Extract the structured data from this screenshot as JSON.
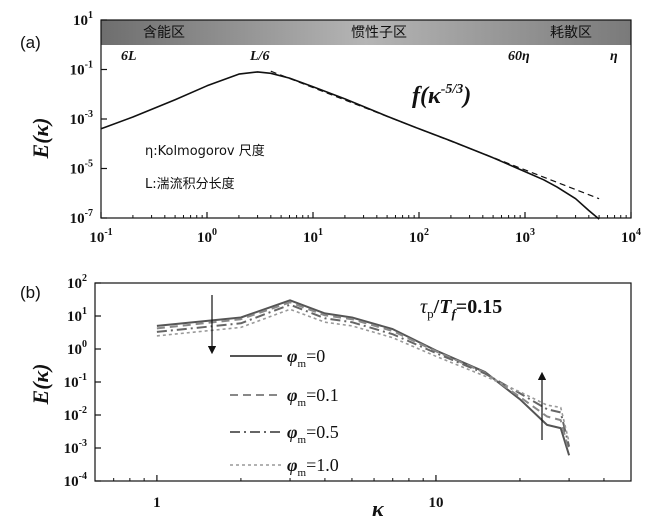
{
  "chart_data": [
    {
      "id": "a",
      "type": "line",
      "panel_label": "(a)",
      "xscale": "log",
      "yscale": "log",
      "xlim": [
        0.1,
        10000
      ],
      "ylim": [
        1e-07,
        10
      ],
      "x_ticks": [
        "10",
        "10",
        "10",
        "10",
        "10",
        "10"
      ],
      "x_tick_exps": [
        "-1",
        "0",
        "1",
        "2",
        "3",
        "4"
      ],
      "y_ticks": [
        "10",
        "10",
        "10",
        "10",
        "10"
      ],
      "y_tick_exps": [
        "-7",
        "-5",
        "-3",
        "-1",
        "1"
      ],
      "ylabel": "E(κ)",
      "ylabel_main": "E(",
      "ylabel_var": "κ",
      "ylabel_close": ")",
      "bands": [
        "含能区",
        "惯性子区",
        "耗散区"
      ],
      "scale_marks": [
        "6L",
        "L/6",
        "60η",
        "η"
      ],
      "annotations": [
        "η:Kolmogorov 尺度",
        "L:湍流积分长度"
      ],
      "slope_label": "f(κ",
      "slope_exp": "-5/3",
      "slope_close": ")",
      "series": [
        {
          "name": "E(κ)",
          "style": "solid",
          "x": [
            0.1,
            0.2,
            0.5,
            1,
            2,
            3,
            4,
            6,
            10,
            20,
            50,
            100,
            200,
            500,
            1000,
            1500,
            2000,
            3000,
            4000,
            5000
          ],
          "y": [
            0.0004,
            0.0012,
            0.006,
            0.022,
            0.065,
            0.08,
            0.07,
            0.045,
            0.02,
            0.0065,
            0.0013,
            0.0004,
            0.00013,
            2.7e-05,
            7.5e-06,
            3.5e-06,
            1.8e-06,
            6e-07,
            2e-07,
            9e-08
          ]
        },
        {
          "name": "κ^-5/3",
          "style": "dashed",
          "x": [
            4,
            5000
          ],
          "y": [
            0.085,
            6e-07
          ]
        }
      ]
    },
    {
      "id": "b",
      "type": "line",
      "panel_label": "(b)",
      "xscale": "log",
      "yscale": "log",
      "xlim": [
        0.6,
        50
      ],
      "ylim": [
        0.0001,
        100
      ],
      "x_ticks": [
        "1",
        "10"
      ],
      "y_ticks": [
        "10",
        "10",
        "10",
        "10",
        "10",
        "10",
        "10"
      ],
      "y_tick_exps": [
        "-4",
        "-3",
        "-2",
        "-1",
        "0",
        "1",
        "2"
      ],
      "xlabel": "κ",
      "ylabel": "E(κ)",
      "ylabel_main": "E(",
      "ylabel_var": "κ",
      "ylabel_close": ")",
      "title_main": "τ",
      "title_sub1": "p",
      "title_slash": "/",
      "title_T": "T",
      "title_sub2": "f",
      "title_value": "=0.15",
      "legend_symbol": "φ",
      "legend_sub": "m",
      "series": [
        {
          "name": "φm=0",
          "value_text": "=0",
          "style": "solid",
          "x": [
            1,
            2,
            3,
            4,
            5,
            7,
            10,
            15,
            20,
            25,
            28,
            30
          ],
          "y": [
            5,
            9,
            30,
            12,
            9,
            4,
            0.9,
            0.2,
            0.03,
            0.005,
            0.004,
            0.0006
          ]
        },
        {
          "name": "φm=0.1",
          "value_text": "=0.1",
          "style": "dashed",
          "x": [
            1,
            2,
            3,
            4,
            5,
            7,
            10,
            15,
            20,
            25,
            28,
            30
          ],
          "y": [
            4.2,
            8,
            26,
            10.5,
            8,
            3.5,
            0.85,
            0.19,
            0.035,
            0.009,
            0.007,
            0.0008
          ]
        },
        {
          "name": "φm=0.5",
          "value_text": "=0.5",
          "style": "dashdot",
          "x": [
            1,
            2,
            3,
            4,
            5,
            7,
            10,
            15,
            20,
            25,
            28,
            30
          ],
          "y": [
            3.3,
            6,
            22,
            8.5,
            6.5,
            2.8,
            0.75,
            0.18,
            0.045,
            0.015,
            0.012,
            0.0011
          ]
        },
        {
          "name": "φm=1.0",
          "value_text": "=1.0",
          "style": "dotted",
          "x": [
            1,
            2,
            3,
            4,
            5,
            7,
            10,
            15,
            20,
            25,
            28,
            30
          ],
          "y": [
            2.5,
            4.5,
            16,
            6.5,
            5,
            2.2,
            0.6,
            0.15,
            0.05,
            0.02,
            0.017,
            0.0015
          ]
        }
      ]
    }
  ]
}
